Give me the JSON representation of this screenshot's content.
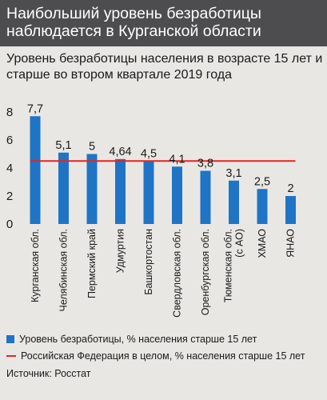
{
  "headline": "Наибольший уровень безработицы наблюдается в Курганской области",
  "chart_data": {
    "type": "bar",
    "title": "Уровень безработицы населения в возрасте 15 лет и старше во втором квартале 2019 года",
    "categories": [
      "Курганская обл.",
      "Челябинская обл.",
      "Пермский край",
      "Удмуртия",
      "Башкортостан",
      "Свердловская обл.",
      "Оренбургская обл.",
      "Тюменская обл. (с АО)",
      "ХМАО",
      "ЯНАО"
    ],
    "series": [
      {
        "name": "Уровень безработицы, % населения старше 15 лет",
        "values": [
          7.7,
          5.1,
          5,
          4.64,
          4.5,
          4.1,
          3.8,
          3.1,
          2.5,
          2
        ],
        "labels": [
          "7,7",
          "5,1",
          "5",
          "4,64",
          "4,5",
          "4,1",
          "3,8",
          "3,1",
          "2,5",
          "2"
        ],
        "color": "#1f74c6"
      }
    ],
    "reference_line": {
      "name": "Российская Федерация в целом, % населения старше 15 лет",
      "value": 4.5,
      "color": "#e52521"
    },
    "yticks": [
      "0",
      "2",
      "4",
      "6",
      "8"
    ],
    "ylim": [
      0,
      8
    ],
    "grid": false,
    "legend_position": "bottom"
  },
  "source": "Источник: Росстат"
}
